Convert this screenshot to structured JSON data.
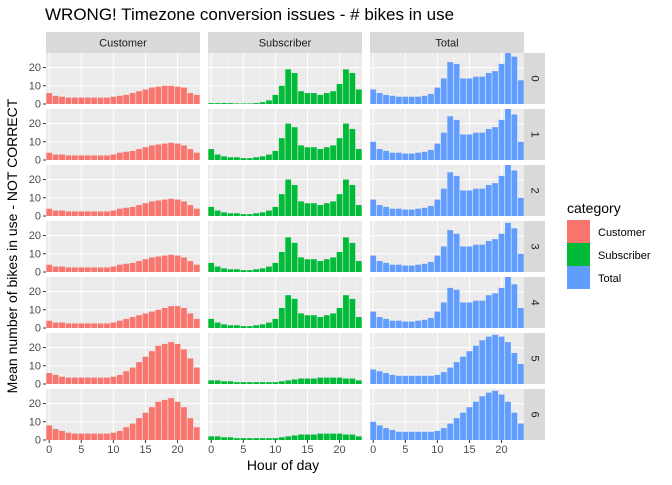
{
  "chart_data": {
    "type": "bar",
    "title": "WRONG! Timezone conversion issues - # bikes in use",
    "xlabel": "Hour of day",
    "ylabel": "Mean number of bikes in use - NOT CORRECT",
    "col_facets": [
      "Customer",
      "Subscriber",
      "Total"
    ],
    "row_facets": [
      "0",
      "1",
      "2",
      "3",
      "4",
      "5",
      "6"
    ],
    "x": [
      0,
      1,
      2,
      3,
      4,
      5,
      6,
      7,
      8,
      9,
      10,
      11,
      12,
      13,
      14,
      15,
      16,
      17,
      18,
      19,
      20,
      21,
      22,
      23
    ],
    "xlim": [
      -0.5,
      23.5
    ],
    "ylim": [
      0,
      28
    ],
    "xticks": [
      0,
      5,
      10,
      15,
      20
    ],
    "yticks": [
      0,
      10,
      20
    ],
    "grid": true,
    "legend": {
      "title": "category",
      "position": "right",
      "items": [
        {
          "label": "Customer",
          "color": "#F8766D"
        },
        {
          "label": "Subscriber",
          "color": "#00BA38"
        },
        {
          "label": "Total",
          "color": "#619CFF"
        }
      ]
    },
    "panels": [
      {
        "row": "0",
        "series": [
          {
            "category": "Customer",
            "values": [
              6,
              4.5,
              4,
              3.5,
              3.5,
              3.5,
              3.5,
              3.5,
              3.5,
              3.5,
              4,
              4.5,
              5,
              6,
              7,
              8,
              9,
              9.5,
              10,
              10,
              9.5,
              9,
              6,
              5
            ]
          },
          {
            "category": "Subscriber",
            "values": [
              0.5,
              0.5,
              0.5,
              0.5,
              0.3,
              0.3,
              0.3,
              0.5,
              1,
              2,
              5,
              10,
              19,
              17,
              7,
              6,
              6,
              5,
              6,
              7,
              11,
              19,
              17,
              8
            ]
          },
          {
            "category": "Total",
            "values": [
              8,
              6,
              5,
              4.5,
              4,
              4,
              4,
              4,
              4.5,
              5.5,
              9,
              14,
              23,
              22,
              14,
              14,
              15,
              15,
              17,
              18,
              22,
              28,
              26,
              13
            ]
          }
        ]
      },
      {
        "row": "1",
        "series": [
          {
            "category": "Customer",
            "values": [
              4,
              3,
              3,
              2.5,
              2.5,
              2.5,
              2.5,
              2.5,
              2.5,
              2.5,
              3,
              4,
              4.5,
              5,
              6,
              7,
              8,
              8.5,
              9,
              9.5,
              9,
              8,
              6,
              4
            ]
          },
          {
            "category": "Subscriber",
            "values": [
              6,
              3,
              2,
              1.5,
              1.5,
              1,
              1,
              1.5,
              2,
              3,
              5,
              12,
              20,
              18,
              8,
              7,
              7,
              6,
              7,
              8,
              12,
              20,
              17,
              6
            ]
          },
          {
            "category": "Total",
            "values": [
              10,
              6,
              5,
              4,
              4,
              3.5,
              3.5,
              4,
              4.5,
              5.5,
              9,
              15,
              24,
              22,
              14,
              14,
              15,
              15,
              17,
              18,
              22,
              28,
              25,
              10
            ]
          }
        ]
      },
      {
        "row": "2",
        "series": [
          {
            "category": "Customer",
            "values": [
              4,
              3,
              3,
              2.5,
              2.5,
              2.5,
              2.5,
              2.5,
              2.5,
              2.5,
              3,
              4,
              4.5,
              5,
              6,
              7,
              8,
              8.5,
              9,
              9.5,
              9,
              8,
              6,
              4
            ]
          },
          {
            "category": "Subscriber",
            "values": [
              5,
              3,
              2,
              1.5,
              1.5,
              1,
              1,
              1.5,
              2,
              3,
              5,
              12,
              20,
              17,
              8,
              7,
              7,
              6,
              7,
              8,
              12,
              20,
              17,
              6
            ]
          },
          {
            "category": "Total",
            "values": [
              9,
              6,
              5,
              4,
              4,
              3.5,
              3.5,
              4,
              4.5,
              5.5,
              9,
              15,
              24,
              22,
              14,
              14,
              15,
              15,
              17,
              18,
              22,
              28,
              25,
              10
            ]
          }
        ]
      },
      {
        "row": "3",
        "series": [
          {
            "category": "Customer",
            "values": [
              4,
              3,
              3,
              2.5,
              2.5,
              2.5,
              2.5,
              2.5,
              2.5,
              2.5,
              3,
              4,
              4.5,
              5,
              6,
              7,
              8,
              8.5,
              9,
              9.5,
              9,
              8,
              6,
              4
            ]
          },
          {
            "category": "Subscriber",
            "values": [
              5,
              3,
              2,
              1.5,
              1.5,
              1,
              1,
              1.5,
              2,
              3,
              5,
              11,
              19,
              16,
              8,
              7,
              7,
              6,
              7,
              8,
              11,
              19,
              16,
              6
            ]
          },
          {
            "category": "Total",
            "values": [
              9,
              6,
              5,
              4,
              4,
              3.5,
              3.5,
              4,
              4.5,
              5.5,
              9,
              14,
              23,
              21,
              14,
              14,
              15,
              15,
              17,
              18,
              21,
              27,
              24,
              10
            ]
          }
        ]
      },
      {
        "row": "4",
        "series": [
          {
            "category": "Customer",
            "values": [
              4,
              3,
              3,
              2.5,
              2.5,
              2.5,
              2.5,
              2.5,
              2.5,
              2.5,
              3,
              4,
              5,
              6,
              7,
              8,
              9,
              10,
              11,
              12,
              12,
              11,
              8,
              5
            ]
          },
          {
            "category": "Subscriber",
            "values": [
              5,
              3,
              2,
              1.5,
              1.5,
              1,
              1,
              1.5,
              2,
              3,
              5,
              11,
              18,
              16,
              8,
              7,
              7,
              6,
              7,
              8,
              11,
              18,
              16,
              6
            ]
          },
          {
            "category": "Total",
            "values": [
              9,
              6,
              5,
              4,
              4,
              3.5,
              3.5,
              4,
              4.5,
              5.5,
              9,
              14,
              22,
              21,
              14,
              14,
              15,
              15,
              18,
              19,
              22,
              28,
              24,
              11
            ]
          }
        ]
      },
      {
        "row": "5",
        "series": [
          {
            "category": "Customer",
            "values": [
              6,
              5,
              4,
              3.5,
              3.5,
              3.5,
              3.5,
              3.5,
              3.5,
              3.5,
              4,
              5,
              7,
              9,
              12,
              15,
              18,
              21,
              22,
              23,
              22,
              19,
              14,
              9
            ]
          },
          {
            "category": "Subscriber",
            "values": [
              2,
              2,
              1.5,
              1.5,
              1,
              1,
              1,
              1,
              1,
              1,
              1,
              1.5,
              2,
              2.5,
              3,
              3,
              3,
              3.5,
              3.5,
              3.5,
              3.5,
              3,
              3,
              2
            ]
          },
          {
            "category": "Total",
            "values": [
              8,
              7,
              6,
              5,
              4.5,
              4.5,
              4.5,
              4.5,
              4.5,
              4.5,
              5,
              6.5,
              9,
              12,
              15,
              18,
              21,
              24,
              26,
              27,
              26,
              23,
              17,
              11
            ]
          }
        ]
      },
      {
        "row": "6",
        "series": [
          {
            "category": "Customer",
            "values": [
              8,
              6,
              5,
              4,
              3.5,
              3.5,
              3.5,
              3.5,
              3.5,
              3.5,
              4,
              5,
              7,
              9,
              12,
              15,
              18,
              21,
              22,
              23,
              21,
              18,
              12,
              7
            ]
          },
          {
            "category": "Subscriber",
            "values": [
              2,
              2,
              1.5,
              1.5,
              1,
              1,
              1,
              1,
              1,
              1,
              1,
              1.5,
              2,
              2.5,
              3,
              3,
              3,
              3.5,
              3.5,
              3.5,
              3.5,
              3,
              3,
              2
            ]
          },
          {
            "category": "Total",
            "values": [
              10,
              8,
              6.5,
              5.5,
              4.5,
              4.5,
              4.5,
              4.5,
              4.5,
              4.5,
              5,
              6.5,
              9,
              12,
              15,
              18,
              21,
              24,
              26,
              27,
              25,
              21,
              15,
              9
            ]
          }
        ]
      }
    ]
  }
}
